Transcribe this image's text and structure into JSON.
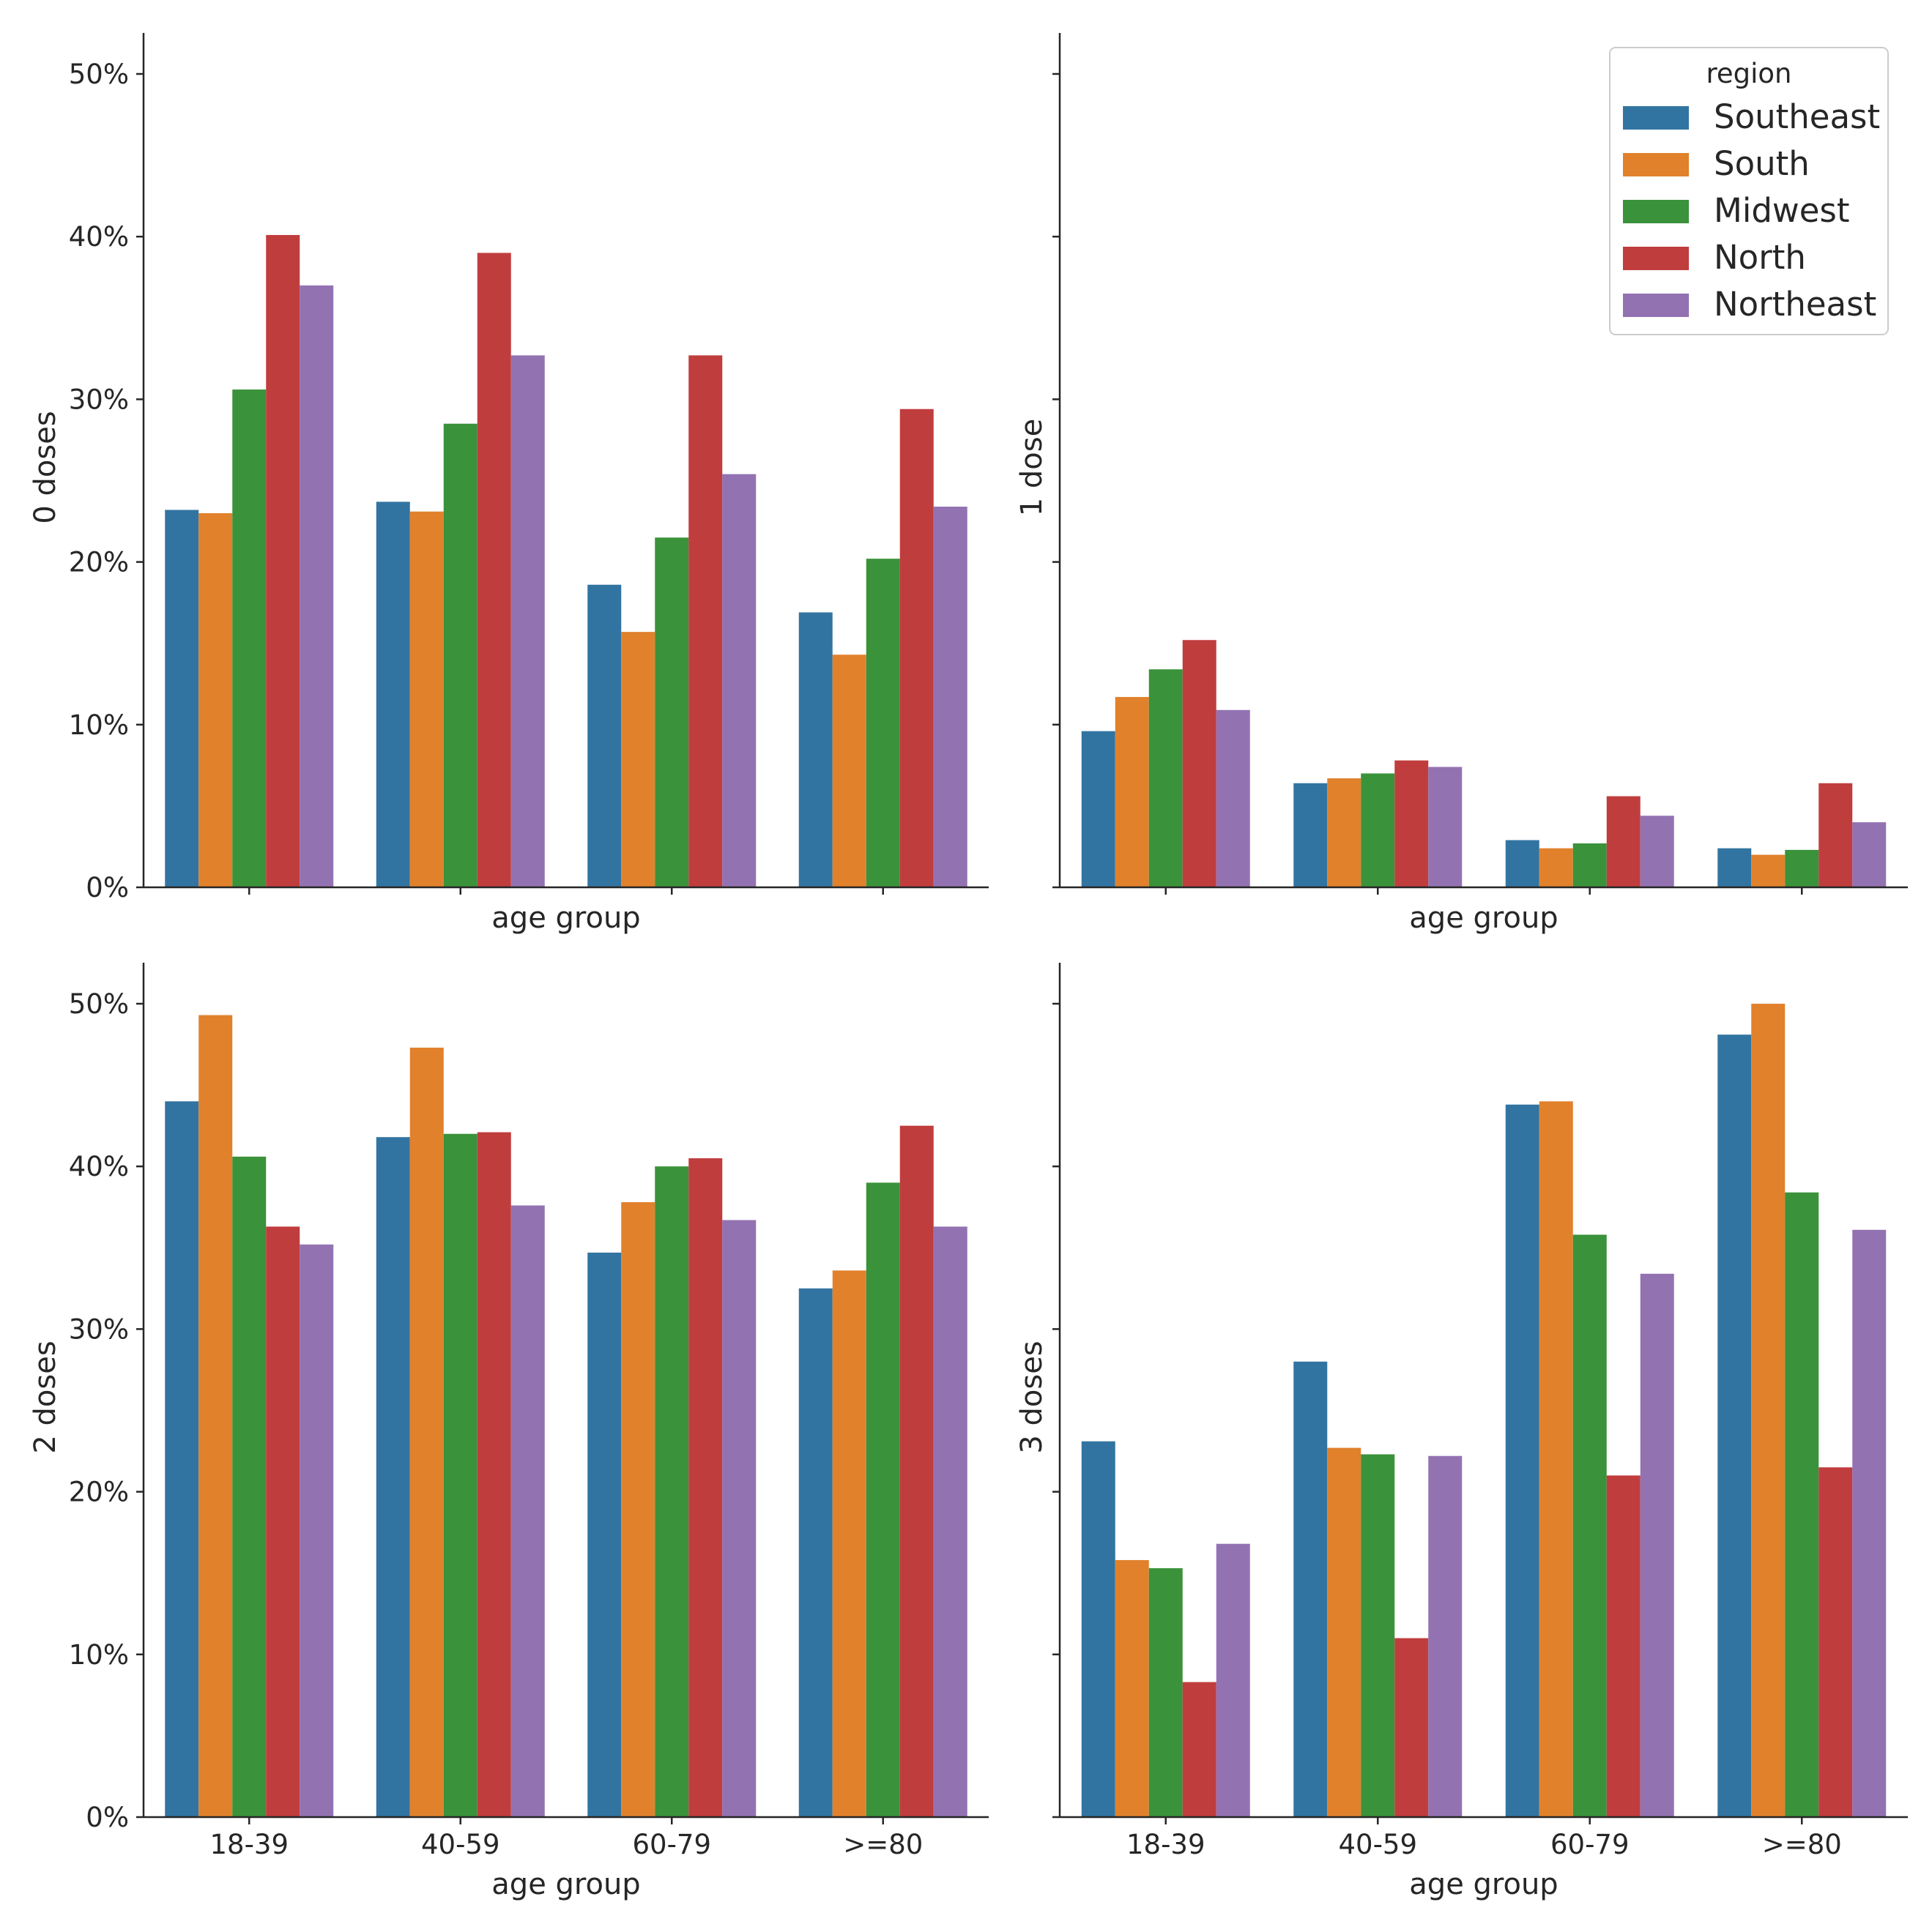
{
  "chart_data": {
    "type": "bar",
    "layout": "2x2 grid, shared y axis, shared x axis",
    "categories": [
      "18-39",
      "40-59",
      "60-79",
      ">=80"
    ],
    "xlabel": "age group",
    "ylim": [
      0,
      52.5
    ],
    "yticks": [
      0,
      10,
      20,
      30,
      40,
      50
    ],
    "ytick_labels": [
      "0%",
      "10%",
      "20%",
      "30%",
      "40%",
      "50%"
    ],
    "legend": {
      "title": "region",
      "placement": "top-right",
      "entries": [
        "Southeast",
        "South",
        "Midwest",
        "North",
        "Northeast"
      ]
    },
    "colors": {
      "Southeast": "#3274a1",
      "South": "#e1812c",
      "Midwest": "#3a923a",
      "North": "#c03d3e",
      "Northeast": "#9372b2"
    },
    "panels": [
      {
        "ylabel": "0 doses",
        "series": [
          {
            "name": "Southeast",
            "values": [
              23.2,
              23.7,
              18.6,
              16.9
            ]
          },
          {
            "name": "South",
            "values": [
              23.0,
              23.1,
              15.7,
              14.3
            ]
          },
          {
            "name": "Midwest",
            "values": [
              30.6,
              28.5,
              21.5,
              20.2
            ]
          },
          {
            "name": "North",
            "values": [
              40.1,
              39.0,
              32.7,
              29.4
            ]
          },
          {
            "name": "Northeast",
            "values": [
              37.0,
              32.7,
              25.4,
              23.4
            ]
          }
        ]
      },
      {
        "ylabel": "1 dose",
        "series": [
          {
            "name": "Southeast",
            "values": [
              9.6,
              6.4,
              2.9,
              2.4
            ]
          },
          {
            "name": "South",
            "values": [
              11.7,
              6.7,
              2.4,
              2.0
            ]
          },
          {
            "name": "Midwest",
            "values": [
              13.4,
              7.0,
              2.7,
              2.3
            ]
          },
          {
            "name": "North",
            "values": [
              15.2,
              7.8,
              5.6,
              6.4
            ]
          },
          {
            "name": "Northeast",
            "values": [
              10.9,
              7.4,
              4.4,
              4.0
            ]
          }
        ]
      },
      {
        "ylabel": "2 doses",
        "series": [
          {
            "name": "Southeast",
            "values": [
              44.0,
              41.8,
              34.7,
              32.5
            ]
          },
          {
            "name": "South",
            "values": [
              49.3,
              47.3,
              37.8,
              33.6
            ]
          },
          {
            "name": "Midwest",
            "values": [
              40.6,
              42.0,
              40.0,
              39.0
            ]
          },
          {
            "name": "North",
            "values": [
              36.3,
              42.1,
              40.5,
              42.5
            ]
          },
          {
            "name": "Northeast",
            "values": [
              35.2,
              37.6,
              36.7,
              36.3
            ]
          }
        ]
      },
      {
        "ylabel": "3 doses",
        "series": [
          {
            "name": "Southeast",
            "values": [
              23.1,
              28.0,
              43.8,
              48.1
            ]
          },
          {
            "name": "South",
            "values": [
              15.8,
              22.7,
              44.0,
              50.0
            ]
          },
          {
            "name": "Midwest",
            "values": [
              15.3,
              22.3,
              35.8,
              38.4
            ]
          },
          {
            "name": "North",
            "values": [
              8.3,
              11.0,
              21.0,
              21.5
            ]
          },
          {
            "name": "Northeast",
            "values": [
              16.8,
              22.2,
              33.4,
              36.1
            ]
          }
        ]
      }
    ]
  }
}
